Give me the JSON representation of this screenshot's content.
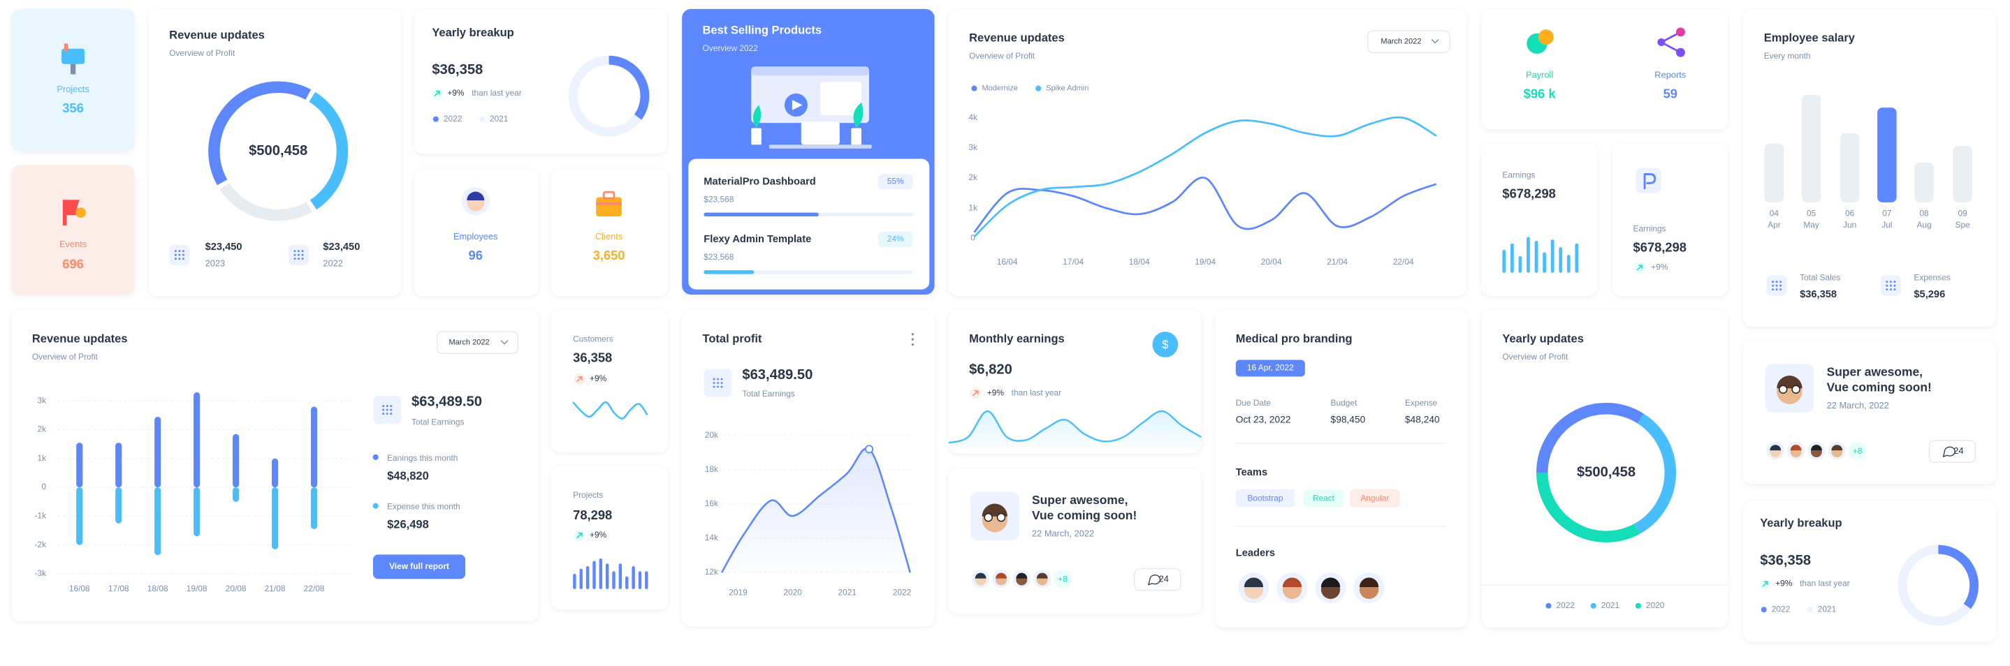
{
  "projects": {
    "label": "Projects",
    "value": "356"
  },
  "events": {
    "label": "Events",
    "value": "696"
  },
  "revenue_donut": {
    "title": "Revenue updates",
    "subtitle": "Overview of Profit",
    "center_label": "$500,458",
    "segments": [
      {
        "value": 33,
        "color": "#49beff"
      },
      {
        "value": 25,
        "color": "#e7ecf0"
      },
      {
        "value": 42,
        "color": "#5d87ff"
      }
    ],
    "stats": [
      {
        "amount": "$23,450",
        "year": "2023"
      },
      {
        "amount": "$23,450",
        "year": "2022"
      }
    ]
  },
  "yearly_breakup": {
    "title": "Yearly breakup",
    "amount": "$36,358",
    "change": "+9%",
    "change_note": "than last year",
    "series": [
      {
        "name": "2022",
        "value": 35,
        "color": "#5d87ff"
      },
      {
        "name": "2021",
        "value": 65,
        "color": "#ecf2ff"
      }
    ]
  },
  "employees": {
    "label": "Employees",
    "value": "96"
  },
  "clients": {
    "label": "Clients",
    "value": "3,650"
  },
  "best_selling": {
    "title": "Best Selling Products",
    "subtitle": "Overview 2022",
    "products": [
      {
        "name": "MaterialPro Dashboard",
        "price": "$23,568",
        "value": 55,
        "value_label": "55%",
        "color": "#5d87ff"
      },
      {
        "name": "Flexy Admin Template",
        "price": "$23,568",
        "value": 24,
        "value_label": "24%",
        "color": "#49beff"
      }
    ]
  },
  "revenue_line": {
    "title": "Revenue updates",
    "subtitle": "Overview of Profit",
    "period": "March 2022",
    "categories": [
      null,
      "16/04",
      null,
      "17/04",
      null,
      "18/04",
      null,
      "19/04",
      null,
      "20/04",
      null,
      "21/04",
      null,
      "22/04",
      null
    ],
    "series": [
      {
        "name": "Modernize",
        "color": "#5d87ff",
        "values": [
          200,
          1500,
          1600,
          1400,
          1000,
          800,
          1200,
          2000,
          400,
          600,
          1500,
          400,
          700,
          1400,
          1800
        ]
      },
      {
        "name": "Spike Admin",
        "color": "#49beff",
        "values": [
          50,
          1100,
          1600,
          1700,
          1800,
          2200,
          2800,
          3500,
          3900,
          3800,
          3500,
          3400,
          3800,
          4000,
          3400
        ]
      }
    ],
    "ylim": [
      0,
      4000
    ],
    "yticks": [
      {
        "value": 4000,
        "label": "4k"
      },
      {
        "value": 3000,
        "label": "3k"
      },
      {
        "value": 2000,
        "label": "2k"
      },
      {
        "value": 1000,
        "label": "1k"
      },
      0
    ]
  },
  "payroll": {
    "label": "Payroll",
    "value": "$96 k"
  },
  "reports": {
    "label": "Reports",
    "value": "59"
  },
  "earnings_bars": {
    "label": "Earnings",
    "value": "$678,298",
    "values": [
      18,
      23,
      13,
      28,
      25,
      16,
      26,
      20,
      14,
      23
    ],
    "color": "#49beff"
  },
  "earnings_change": {
    "label": "Earnings",
    "value": "$678,298",
    "change": "+9%"
  },
  "employee_salary": {
    "title": "Employee salary",
    "subtitle": "Every month",
    "categories": [
      {
        "day": "04",
        "month": "Apr"
      },
      {
        "day": "05",
        "month": "May"
      },
      {
        "day": "06",
        "month": "Jun"
      },
      {
        "day": "07",
        "month": "Jul"
      },
      {
        "day": "08",
        "month": "Aug"
      },
      {
        "day": "09",
        "month": "Spe"
      }
    ],
    "values": [
      46,
      84,
      54,
      74,
      31,
      44
    ],
    "colors": [
      "#eaeff4",
      "#eaeff4",
      "#eaeff4",
      "#5d87ff",
      "#eaeff4",
      "#eaeff4"
    ],
    "stats": [
      {
        "label": "Total Sales",
        "value": "$36,358"
      },
      {
        "label": "Expenses",
        "value": "$5,296"
      }
    ]
  },
  "revenue_bars": {
    "title": "Revenue updates",
    "subtitle": "Overview of Profit",
    "period": "March 2022",
    "categories": [
      "16/08",
      "17/08",
      "18/08",
      "19/08",
      "20/08",
      "21/08",
      "22/08"
    ],
    "series": [
      {
        "color": "#5d87ff",
        "values": [
          1550,
          1550,
          2450,
          3300,
          1850,
          1000,
          2800
        ]
      },
      {
        "color": "#49beff",
        "values": [
          -2000,
          -1250,
          -2350,
          -1700,
          -500,
          -2150,
          -1450
        ]
      }
    ],
    "ylim": [
      -3000,
      3000
    ],
    "yticks": [
      {
        "value": 3000,
        "label": "3k"
      },
      {
        "value": 2000,
        "label": "2k"
      },
      {
        "value": 1000,
        "label": "1k"
      },
      0,
      {
        "value": -1000,
        "label": "-1k"
      },
      {
        "value": -2000,
        "label": "-2k"
      },
      {
        "value": -3000,
        "label": "-3k"
      }
    ],
    "total": "$63,489.50",
    "total_label": "Total Earnings",
    "earnings_label": "Eanings this month",
    "earnings": "$48,820",
    "expense_label": "Expense this month",
    "expense": "$26,498",
    "button": "View full report"
  },
  "customers": {
    "label": "Customers",
    "value": "36,358",
    "change": "+9%",
    "values": [
      12,
      7,
      4,
      8,
      12,
      6,
      3,
      8,
      11,
      5
    ],
    "color": "#49beff"
  },
  "projects_bars": {
    "label": "Projects",
    "value": "78,298",
    "change": "+9%",
    "values": [
      12,
      16,
      18,
      22,
      24,
      20,
      14,
      20,
      10,
      18,
      14,
      14
    ],
    "color": "#5d87ff"
  },
  "total_profit": {
    "title": "Total profit",
    "amount": "$63,489.50",
    "amount_label": "Total Earnings",
    "x": [
      2018.7,
      2019.1,
      2019.6,
      2020.0,
      2020.5,
      2021.0,
      2021.4,
      2021.8,
      2022.15
    ],
    "values": [
      12000,
      14200,
      16200,
      15300,
      16500,
      17800,
      19200,
      15800,
      12000
    ],
    "xlim": [
      2018.7,
      2022.15
    ],
    "xticks": [
      2019,
      2020,
      2021,
      2022
    ],
    "ylim": [
      12000,
      20000
    ],
    "yticks": [
      {
        "value": 20000,
        "label": "20k"
      },
      {
        "value": 18000,
        "label": "18k"
      },
      {
        "value": 16000,
        "label": "16k"
      },
      {
        "value": 14000,
        "label": "14k"
      },
      {
        "value": 12000,
        "label": "12k"
      }
    ],
    "color": "#5d87ff"
  },
  "monthly_earnings": {
    "title": "Monthly earnings",
    "currency_icon": "$",
    "amount": "$6,820",
    "change": "+9%",
    "change_note": "than last year",
    "values": [
      2,
      6,
      24,
      6,
      4,
      12,
      18,
      8,
      3,
      6,
      16,
      24,
      14,
      6
    ],
    "color": "#49beff"
  },
  "post_1": {
    "line_1": "Super awesome,",
    "line_2": "Vue coming soon!",
    "date": "22 March, 2022",
    "more": "+8",
    "comments": "24"
  },
  "medical": {
    "title": "Medical pro branding",
    "date": "16 Apr, 2022",
    "fields": [
      {
        "label": "Due Date",
        "value": "Oct 23, 2022"
      },
      {
        "label": "Budget",
        "value": "$98,450"
      },
      {
        "label": "Expense",
        "value": "$48,240"
      }
    ],
    "teams_title": "Teams",
    "teams": [
      "Bootstrap",
      "React",
      "Angular"
    ],
    "leaders_title": "Leaders"
  },
  "yearly_updates": {
    "title": "Yearly updates",
    "subtitle": "Overview of Profit",
    "center_label": "$500,458",
    "series": [
      {
        "name": "2022",
        "value": 34,
        "color": "#5d87ff"
      },
      {
        "name": "2021",
        "value": 33,
        "color": "#49beff"
      },
      {
        "name": "2020",
        "value": 33,
        "color": "#13deb9"
      }
    ]
  },
  "post_2": {
    "line_1": "Super awesome,",
    "line_2": "Vue coming soon!",
    "date": "22 March, 2022",
    "more": "+8",
    "comments": "24"
  },
  "yearly_breakup_2": {
    "title": "Yearly breakup",
    "amount": "$36,358",
    "change": "+9%",
    "change_note": "than last year",
    "series": [
      {
        "name": "2022",
        "value": 35,
        "color": "#5d87ff"
      },
      {
        "name": "2021",
        "value": 65,
        "color": "#ecf2ff"
      }
    ]
  }
}
